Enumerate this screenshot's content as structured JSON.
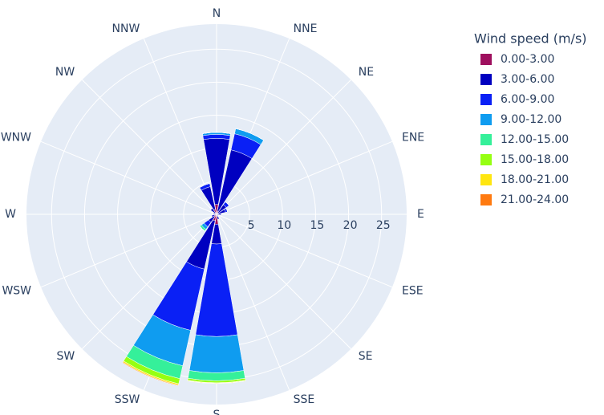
{
  "chart_data": {
    "type": "barpolar",
    "legend_title": "Wind speed (m/s)",
    "categories": [
      "N",
      "NNE",
      "NE",
      "ENE",
      "E",
      "ESE",
      "SE",
      "SSE",
      "S",
      "SSW",
      "SW",
      "WSW",
      "W",
      "WNW",
      "NW",
      "NNW"
    ],
    "rlim": [
      0,
      28.8
    ],
    "rticks": [
      5,
      10,
      15,
      20,
      25
    ],
    "grid": true,
    "series": [
      {
        "name": "0.00-3.00",
        "color": "#9e0f5e",
        "values": [
          1.5,
          0.5,
          0.3,
          0.2,
          0.2,
          0.1,
          0.1,
          0.3,
          1.5,
          1,
          0.5,
          0.3,
          0.2,
          0.2,
          0.3,
          0.8
        ]
      },
      {
        "name": "3.00-6.00",
        "color": "#0000c0",
        "values": [
          10,
          9.5,
          1.5,
          1.2,
          0.5,
          0.3,
          0.2,
          0.5,
          3,
          7.5,
          1,
          0.5,
          0.3,
          0.3,
          0.8,
          3.5
        ]
      },
      {
        "name": "6.00-9.00",
        "color": "#0a20f5",
        "values": [
          0.6,
          2.5,
          0.5,
          0.3,
          0,
          0,
          0,
          0,
          14,
          9.5,
          0.8,
          0,
          0,
          0,
          0,
          0.5
        ]
      },
      {
        "name": "9.00-12.00",
        "color": "#0f9cf0",
        "values": [
          0.3,
          0.8,
          0,
          0,
          0,
          0,
          0,
          0,
          5.5,
          5.5,
          0.5,
          0,
          0,
          0,
          0,
          0
        ]
      },
      {
        "name": "12.00-15.00",
        "color": "#35f09a",
        "values": [
          0,
          0,
          0,
          0,
          0,
          0,
          0,
          0,
          1.2,
          2,
          0.3,
          0,
          0,
          0,
          0,
          0
        ]
      },
      {
        "name": "15.00-18.00",
        "color": "#96ff12",
        "values": [
          0,
          0,
          0,
          0,
          0,
          0,
          0,
          0,
          0.3,
          0.8,
          0,
          0,
          0,
          0,
          0,
          0
        ]
      },
      {
        "name": "18.00-21.00",
        "color": "#ffe610",
        "values": [
          0,
          0,
          0,
          0,
          0,
          0,
          0,
          0,
          0.1,
          0.2,
          0,
          0,
          0,
          0,
          0,
          0
        ]
      },
      {
        "name": "21.00-24.00",
        "color": "#ff7a10",
        "values": [
          0,
          0,
          0,
          0,
          0,
          0,
          0,
          0,
          0,
          0.1,
          0,
          0,
          0,
          0,
          0,
          0
        ]
      }
    ]
  }
}
